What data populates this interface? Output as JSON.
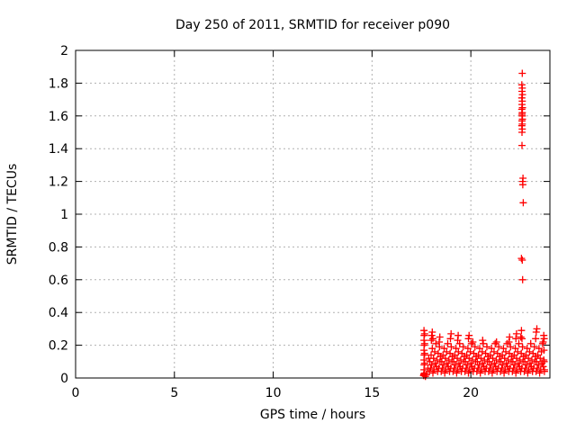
{
  "figure": {
    "background": "#ffffff",
    "text_color": "#000000"
  },
  "chart_data": {
    "type": "scatter",
    "title": "Day 250 of 2011, SRMTID for receiver p090",
    "xlabel": "GPS time / hours",
    "ylabel": "SRMTID / TECUs",
    "xlim": [
      0,
      24
    ],
    "ylim": [
      0,
      2
    ],
    "xticks": [
      0,
      5,
      10,
      15,
      20
    ],
    "xtick_labels": [
      "0",
      "5",
      "10",
      "15",
      "20"
    ],
    "yticks": [
      0,
      0.2,
      0.4,
      0.6,
      0.8,
      1,
      1.2,
      1.4,
      1.6,
      1.8,
      2
    ],
    "ytick_labels": [
      "0",
      "0.2",
      "0.4",
      "0.6",
      "0.8",
      "1",
      "1.2",
      "1.4",
      "1.6",
      "1.8",
      "2"
    ],
    "grid": true,
    "grid_style": "dashed",
    "legend": "none",
    "marker": "plus",
    "marker_color": "#ff0000",
    "grid_color": "#b0b0b0",
    "axis_color": "#000000",
    "points": [
      [
        17.61,
        0.015
      ],
      [
        17.62,
        0.02
      ],
      [
        17.63,
        0.025
      ],
      [
        17.63,
        0.02
      ],
      [
        17.63,
        0.05
      ],
      [
        17.64,
        0.08
      ],
      [
        17.63,
        0.11
      ],
      [
        17.64,
        0.14
      ],
      [
        17.63,
        0.17
      ],
      [
        17.64,
        0.2
      ],
      [
        17.63,
        0.23
      ],
      [
        17.64,
        0.26
      ],
      [
        17.63,
        0.29
      ],
      [
        17.66,
        0.03
      ],
      [
        17.66,
        0.09
      ],
      [
        17.66,
        0.15
      ],
      [
        17.66,
        0.21
      ],
      [
        17.66,
        0.27
      ],
      [
        17.7,
        0.01
      ],
      [
        17.75,
        0.02
      ],
      [
        17.83,
        0.06
      ],
      [
        17.87,
        0.12
      ],
      [
        17.9,
        0.04
      ],
      [
        17.93,
        0.1
      ],
      [
        17.96,
        0.06
      ],
      [
        17.99,
        0.14
      ],
      [
        18.02,
        0.08
      ],
      [
        18.05,
        0.18
      ],
      [
        18.08,
        0.03
      ],
      [
        18.11,
        0.12
      ],
      [
        18.14,
        0.05
      ],
      [
        18.17,
        0.16
      ],
      [
        18.2,
        0.09
      ],
      [
        18.23,
        0.21
      ],
      [
        18.26,
        0.07
      ],
      [
        18.29,
        0.11
      ],
      [
        18.32,
        0.04
      ],
      [
        18.35,
        0.15
      ],
      [
        18.38,
        0.06
      ],
      [
        18.41,
        0.19
      ],
      [
        18.44,
        0.1
      ],
      [
        18.47,
        0.13
      ],
      [
        18.5,
        0.04
      ],
      [
        18.53,
        0.1
      ],
      [
        18.56,
        0.06
      ],
      [
        18.59,
        0.14
      ],
      [
        18.62,
        0.08
      ],
      [
        18.65,
        0.18
      ],
      [
        18.68,
        0.03
      ],
      [
        18.71,
        0.12
      ],
      [
        18.74,
        0.05
      ],
      [
        18.77,
        0.16
      ],
      [
        18.8,
        0.09
      ],
      [
        18.83,
        0.21
      ],
      [
        18.86,
        0.07
      ],
      [
        18.89,
        0.11
      ],
      [
        18.92,
        0.04
      ],
      [
        18.95,
        0.15
      ],
      [
        18.98,
        0.06
      ],
      [
        19.01,
        0.19
      ],
      [
        19.04,
        0.1
      ],
      [
        19.07,
        0.13
      ],
      [
        19.1,
        0.04
      ],
      [
        19.13,
        0.1
      ],
      [
        19.16,
        0.06
      ],
      [
        19.19,
        0.14
      ],
      [
        19.22,
        0.08
      ],
      [
        19.25,
        0.18
      ],
      [
        19.28,
        0.03
      ],
      [
        19.31,
        0.12
      ],
      [
        19.34,
        0.05
      ],
      [
        19.37,
        0.16
      ],
      [
        19.4,
        0.09
      ],
      [
        19.43,
        0.21
      ],
      [
        19.46,
        0.07
      ],
      [
        19.49,
        0.11
      ],
      [
        19.52,
        0.04
      ],
      [
        19.55,
        0.15
      ],
      [
        19.58,
        0.06
      ],
      [
        19.61,
        0.19
      ],
      [
        19.64,
        0.1
      ],
      [
        19.67,
        0.13
      ],
      [
        19.7,
        0.04
      ],
      [
        19.73,
        0.1
      ],
      [
        19.76,
        0.06
      ],
      [
        19.79,
        0.14
      ],
      [
        19.82,
        0.08
      ],
      [
        19.85,
        0.18
      ],
      [
        19.88,
        0.03
      ],
      [
        19.91,
        0.12
      ],
      [
        19.94,
        0.05
      ],
      [
        19.97,
        0.16
      ],
      [
        20.0,
        0.09
      ],
      [
        20.03,
        0.21
      ],
      [
        20.06,
        0.07
      ],
      [
        20.09,
        0.11
      ],
      [
        20.12,
        0.04
      ],
      [
        20.15,
        0.15
      ],
      [
        20.18,
        0.06
      ],
      [
        20.21,
        0.19
      ],
      [
        20.24,
        0.1
      ],
      [
        20.27,
        0.13
      ],
      [
        20.3,
        0.04
      ],
      [
        20.33,
        0.1
      ],
      [
        20.36,
        0.06
      ],
      [
        20.39,
        0.14
      ],
      [
        20.42,
        0.08
      ],
      [
        20.45,
        0.18
      ],
      [
        20.48,
        0.03
      ],
      [
        20.51,
        0.12
      ],
      [
        20.54,
        0.05
      ],
      [
        20.57,
        0.16
      ],
      [
        20.6,
        0.09
      ],
      [
        20.63,
        0.21
      ],
      [
        20.66,
        0.07
      ],
      [
        20.69,
        0.11
      ],
      [
        20.72,
        0.04
      ],
      [
        20.75,
        0.15
      ],
      [
        20.78,
        0.06
      ],
      [
        20.81,
        0.19
      ],
      [
        20.84,
        0.1
      ],
      [
        20.87,
        0.13
      ],
      [
        20.9,
        0.04
      ],
      [
        20.93,
        0.1
      ],
      [
        20.96,
        0.06
      ],
      [
        20.99,
        0.14
      ],
      [
        21.02,
        0.08
      ],
      [
        21.05,
        0.18
      ],
      [
        21.08,
        0.03
      ],
      [
        21.11,
        0.12
      ],
      [
        21.14,
        0.05
      ],
      [
        21.17,
        0.16
      ],
      [
        21.2,
        0.09
      ],
      [
        21.23,
        0.21
      ],
      [
        21.26,
        0.07
      ],
      [
        21.29,
        0.11
      ],
      [
        21.32,
        0.04
      ],
      [
        21.35,
        0.15
      ],
      [
        21.38,
        0.06
      ],
      [
        21.41,
        0.19
      ],
      [
        21.44,
        0.1
      ],
      [
        21.47,
        0.13
      ],
      [
        21.5,
        0.04
      ],
      [
        21.53,
        0.1
      ],
      [
        21.56,
        0.06
      ],
      [
        21.59,
        0.14
      ],
      [
        21.62,
        0.08
      ],
      [
        21.65,
        0.18
      ],
      [
        21.68,
        0.03
      ],
      [
        21.71,
        0.12
      ],
      [
        21.74,
        0.05
      ],
      [
        21.77,
        0.16
      ],
      [
        21.8,
        0.09
      ],
      [
        21.83,
        0.21
      ],
      [
        21.86,
        0.07
      ],
      [
        21.89,
        0.11
      ],
      [
        21.92,
        0.04
      ],
      [
        21.95,
        0.15
      ],
      [
        21.98,
        0.06
      ],
      [
        22.01,
        0.19
      ],
      [
        22.04,
        0.1
      ],
      [
        22.07,
        0.13
      ],
      [
        22.1,
        0.04
      ],
      [
        22.13,
        0.1
      ],
      [
        22.16,
        0.06
      ],
      [
        22.19,
        0.14
      ],
      [
        22.22,
        0.08
      ],
      [
        22.25,
        0.18
      ],
      [
        22.28,
        0.03
      ],
      [
        22.31,
        0.12
      ],
      [
        22.34,
        0.05
      ],
      [
        22.37,
        0.16
      ],
      [
        22.4,
        0.09
      ],
      [
        22.43,
        0.21
      ],
      [
        22.46,
        0.07
      ],
      [
        22.49,
        0.11
      ],
      [
        22.52,
        0.04
      ],
      [
        22.55,
        0.15
      ],
      [
        22.58,
        0.06
      ],
      [
        22.61,
        0.19
      ],
      [
        22.64,
        0.1
      ],
      [
        22.67,
        0.13
      ],
      [
        22.7,
        0.04
      ],
      [
        22.73,
        0.1
      ],
      [
        22.76,
        0.06
      ],
      [
        22.79,
        0.14
      ],
      [
        22.82,
        0.08
      ],
      [
        22.85,
        0.18
      ],
      [
        22.88,
        0.03
      ],
      [
        22.91,
        0.12
      ],
      [
        22.94,
        0.05
      ],
      [
        22.97,
        0.16
      ],
      [
        23.0,
        0.09
      ],
      [
        23.03,
        0.21
      ],
      [
        23.06,
        0.07
      ],
      [
        23.09,
        0.11
      ],
      [
        23.12,
        0.04
      ],
      [
        23.15,
        0.15
      ],
      [
        23.18,
        0.06
      ],
      [
        23.21,
        0.19
      ],
      [
        23.24,
        0.1
      ],
      [
        23.27,
        0.13
      ],
      [
        23.3,
        0.04
      ],
      [
        23.33,
        0.1
      ],
      [
        23.36,
        0.06
      ],
      [
        23.39,
        0.14
      ],
      [
        23.42,
        0.08
      ],
      [
        23.45,
        0.18
      ],
      [
        23.48,
        0.03
      ],
      [
        23.51,
        0.12
      ],
      [
        23.54,
        0.05
      ],
      [
        23.57,
        0.16
      ],
      [
        23.6,
        0.09
      ],
      [
        23.63,
        0.21
      ],
      [
        23.66,
        0.07
      ],
      [
        23.69,
        0.11
      ],
      [
        23.72,
        0.04
      ],
      [
        18.0,
        0.23
      ],
      [
        18.02,
        0.26
      ],
      [
        18.05,
        0.28
      ],
      [
        18.08,
        0.24
      ],
      [
        18.4,
        0.22
      ],
      [
        18.43,
        0.25
      ],
      [
        18.97,
        0.24
      ],
      [
        19.0,
        0.27
      ],
      [
        19.33,
        0.23
      ],
      [
        19.36,
        0.26
      ],
      [
        19.88,
        0.24
      ],
      [
        19.91,
        0.26
      ],
      [
        20.1,
        0.22
      ],
      [
        20.6,
        0.23
      ],
      [
        21.3,
        0.22
      ],
      [
        21.93,
        0.22
      ],
      [
        21.96,
        0.25
      ],
      [
        22.28,
        0.24
      ],
      [
        22.31,
        0.27
      ],
      [
        22.53,
        0.25
      ],
      [
        22.56,
        0.29
      ],
      [
        22.59,
        0.24
      ],
      [
        23.28,
        0.24
      ],
      [
        23.31,
        0.28
      ],
      [
        23.34,
        0.3
      ],
      [
        23.66,
        0.22
      ],
      [
        23.69,
        0.26
      ],
      [
        23.71,
        0.24
      ],
      [
        23.7,
        0.17
      ],
      [
        23.71,
        0.1
      ],
      [
        23.72,
        0.05
      ],
      [
        22.6,
        1.86
      ],
      [
        22.58,
        1.79
      ],
      [
        22.6,
        1.77
      ],
      [
        22.59,
        1.75
      ],
      [
        22.61,
        1.73
      ],
      [
        22.58,
        1.71
      ],
      [
        22.6,
        1.69
      ],
      [
        22.59,
        1.67
      ],
      [
        22.61,
        1.65
      ],
      [
        22.58,
        1.64
      ],
      [
        22.6,
        1.62
      ],
      [
        22.59,
        1.61
      ],
      [
        22.6,
        1.6
      ],
      [
        22.61,
        1.58
      ],
      [
        22.59,
        1.57
      ],
      [
        22.6,
        1.55
      ],
      [
        22.58,
        1.54
      ],
      [
        22.6,
        1.52
      ],
      [
        22.59,
        1.5
      ],
      [
        22.59,
        1.42
      ],
      [
        22.64,
        1.22
      ],
      [
        22.62,
        1.2
      ],
      [
        22.63,
        1.18
      ],
      [
        22.65,
        1.07
      ],
      [
        22.56,
        0.73
      ],
      [
        22.6,
        0.72
      ],
      [
        22.62,
        0.6
      ]
    ]
  }
}
